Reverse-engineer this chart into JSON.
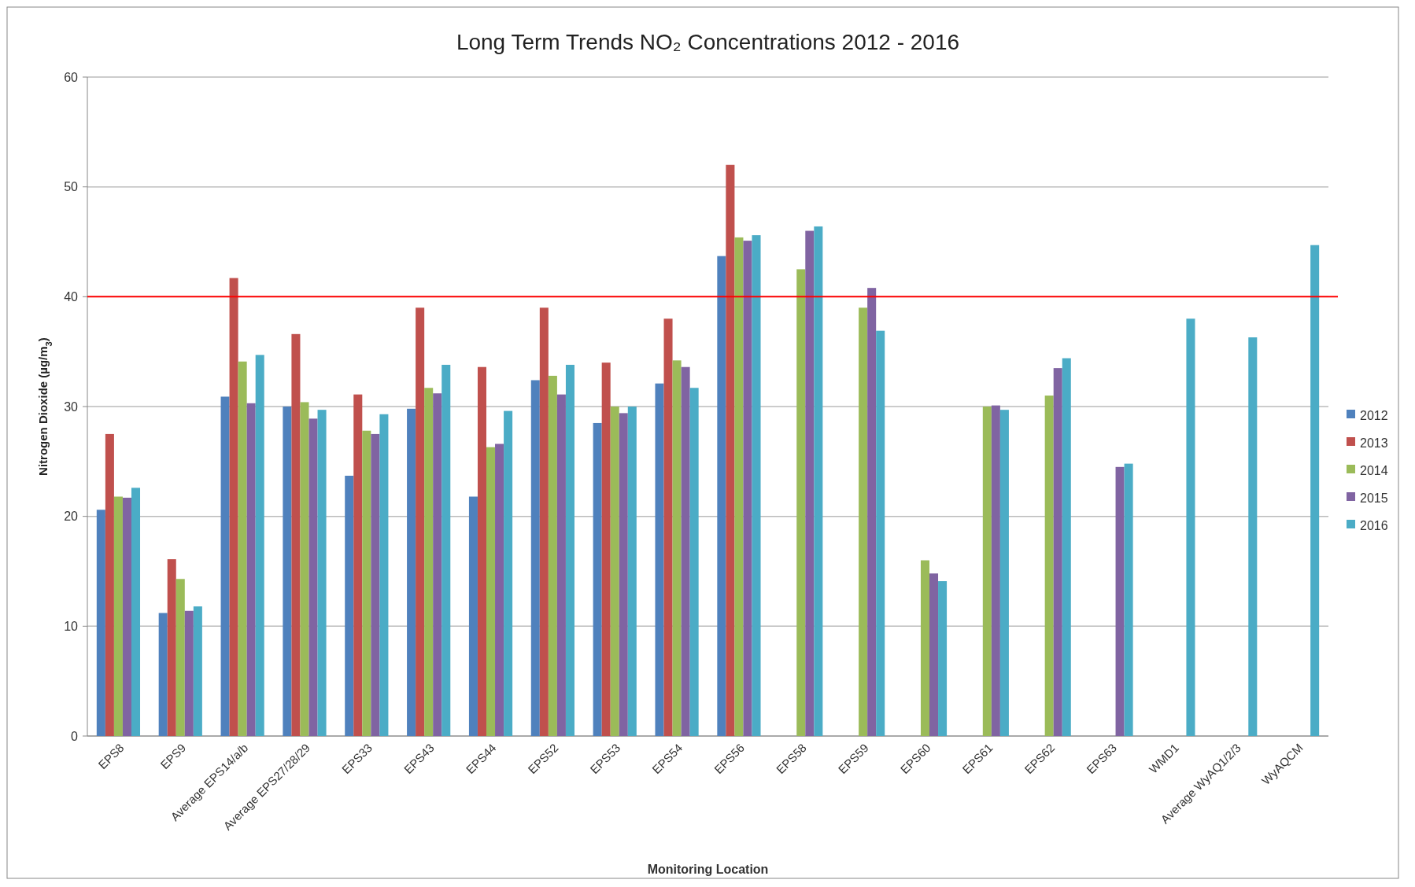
{
  "chart_data": {
    "type": "bar",
    "title": "Long Term Trends NO₂ Concentrations 2012 - 2016",
    "xlabel": "Monitoring Location",
    "ylabel": "Nitrogen Dioxide (µg/m$_{3}$)",
    "categories": [
      "EPS8",
      "EPS9",
      "Average EPS14/a/b",
      "Average EPS27/28/29",
      "EPS33",
      "EPS43",
      "EPS44",
      "EPS52",
      "EPS53",
      "EPS54",
      "EPS56",
      "EPS58",
      "EPS59",
      "EPS60",
      "EPS61",
      "EPS62",
      "EPS63",
      "WMD1",
      "Average WyAQ1/2/3",
      "WyAQCM"
    ],
    "series": [
      {
        "name": "2012",
        "color": "#4f81bd",
        "values": [
          20.6,
          11.2,
          30.9,
          30.0,
          23.7,
          29.8,
          21.8,
          32.4,
          28.5,
          32.1,
          43.7,
          null,
          null,
          null,
          null,
          null,
          null,
          null,
          null,
          null
        ]
      },
      {
        "name": "2013",
        "color": "#c0504d",
        "values": [
          27.5,
          16.1,
          41.7,
          36.6,
          31.1,
          39.0,
          33.6,
          39.0,
          34.0,
          38.0,
          52.0,
          null,
          null,
          null,
          null,
          null,
          null,
          null,
          null,
          null
        ]
      },
      {
        "name": "2014",
        "color": "#9bbb59",
        "values": [
          21.8,
          14.3,
          34.1,
          30.4,
          27.8,
          31.7,
          26.3,
          32.8,
          30.0,
          34.2,
          45.4,
          42.5,
          39.0,
          16.0,
          30.0,
          31.0,
          null,
          null,
          null,
          null
        ]
      },
      {
        "name": "2015",
        "color": "#8064a2",
        "values": [
          21.7,
          11.4,
          30.3,
          28.9,
          27.5,
          31.2,
          26.6,
          31.1,
          29.4,
          33.6,
          45.1,
          46.0,
          40.8,
          14.8,
          30.1,
          33.5,
          24.5,
          null,
          null,
          null
        ]
      },
      {
        "name": "2016",
        "color": "#4bacc6",
        "values": [
          22.6,
          11.8,
          34.7,
          29.7,
          29.3,
          33.8,
          29.6,
          33.8,
          30.0,
          31.7,
          45.6,
          46.4,
          36.9,
          14.1,
          29.7,
          34.4,
          24.8,
          38.0,
          36.3,
          44.7
        ]
      }
    ],
    "ylim": [
      0,
      60
    ],
    "yticks": [
      0,
      10,
      20,
      30,
      40,
      50,
      60
    ],
    "grid": "y",
    "legend": "right",
    "ref_lines": [
      {
        "axis": "y",
        "value": 40,
        "color": "#ff0000"
      }
    ]
  }
}
